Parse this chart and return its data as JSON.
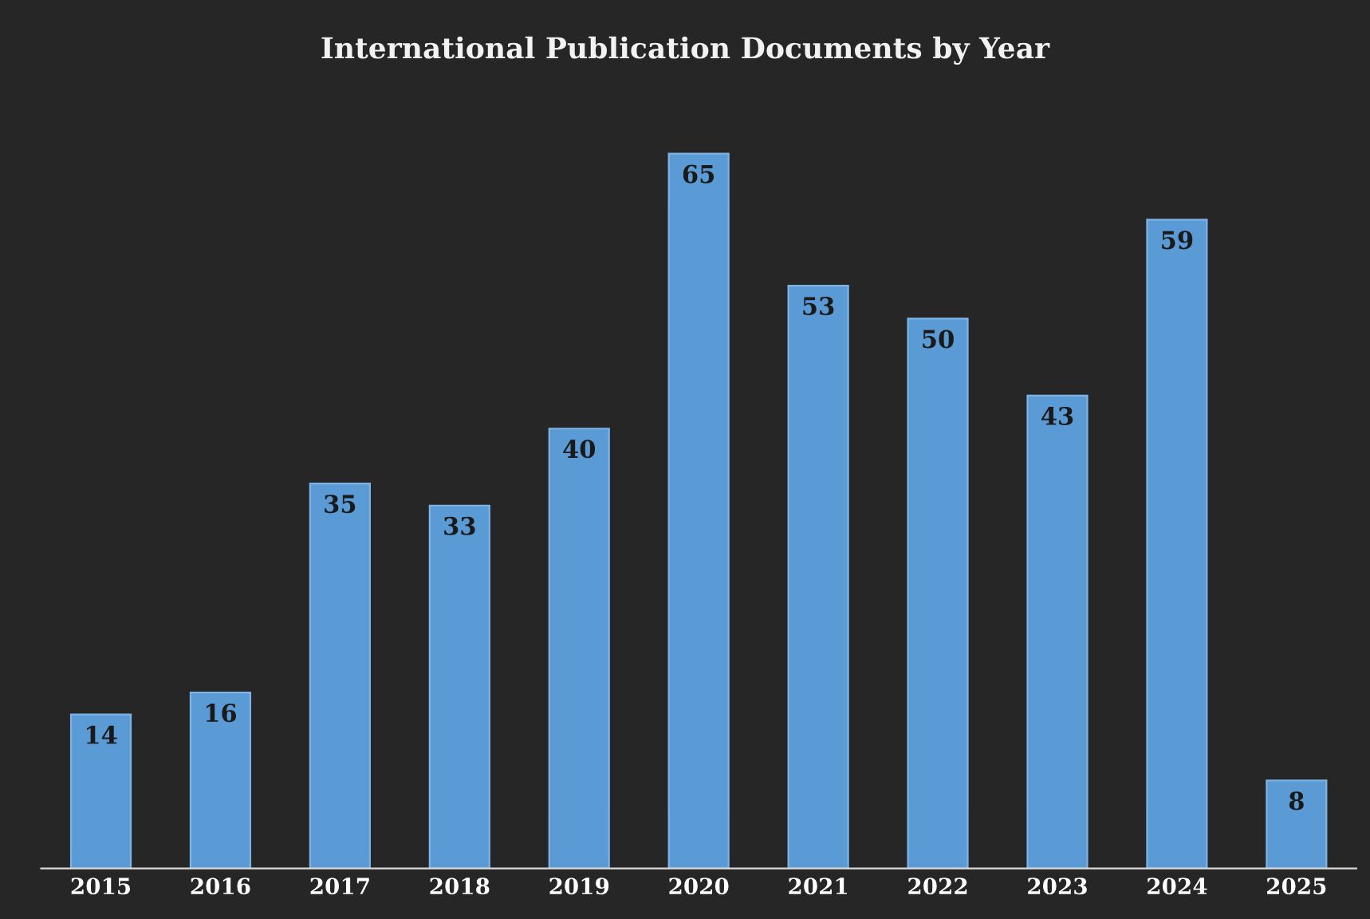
{
  "chart_data": {
    "type": "bar",
    "title": "International Publication Documents by Year",
    "categories": [
      "2015",
      "2016",
      "2017",
      "2018",
      "2019",
      "2020",
      "2021",
      "2022",
      "2023",
      "2024",
      "2025"
    ],
    "values": [
      14,
      16,
      35,
      33,
      40,
      65,
      53,
      50,
      43,
      59,
      8
    ],
    "color": "#5b9bd5",
    "data_labels": true,
    "grid": false,
    "legend": false
  }
}
